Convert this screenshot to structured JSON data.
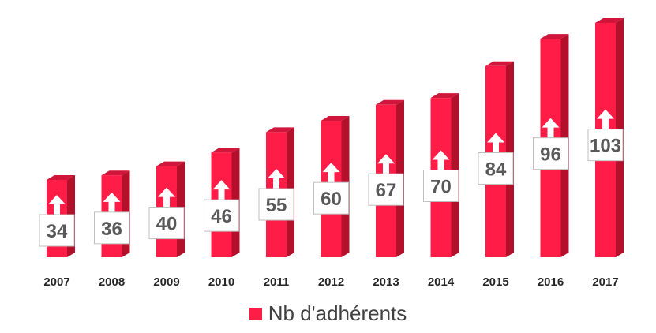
{
  "chart_data": {
    "type": "bar",
    "categories": [
      "2007",
      "2008",
      "2009",
      "2010",
      "2011",
      "2012",
      "2013",
      "2014",
      "2015",
      "2016",
      "2017"
    ],
    "series": [
      {
        "name": "Nb d'adhérents",
        "values": [
          34,
          36,
          40,
          46,
          55,
          60,
          67,
          70,
          84,
          96,
          103
        ]
      }
    ],
    "ylim": [
      0,
      110
    ],
    "grid": false,
    "legend_position": "bottom",
    "colors": {
      "bar_front": "#ff1d47",
      "bar_side": "#b3102c",
      "bar_top": "#d0163a",
      "label_box_border": "#bfbfbf",
      "arrow": "#ffffff"
    }
  },
  "legend": {
    "label": "Nb d'adhérents",
    "color": "#ff1d47"
  }
}
